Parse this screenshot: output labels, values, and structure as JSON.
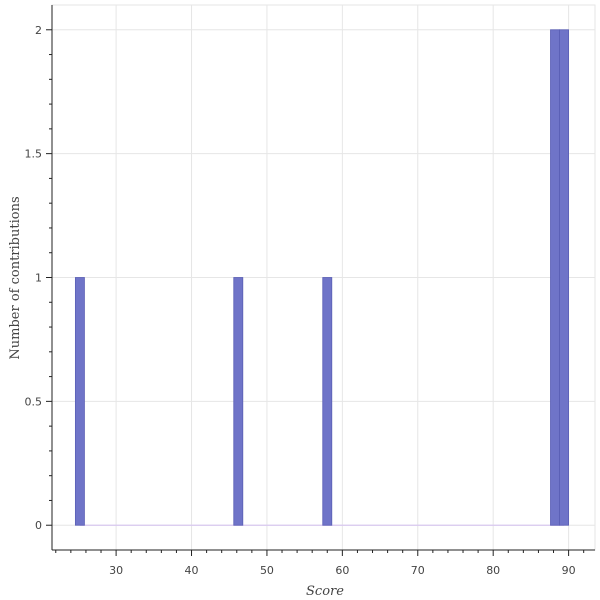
{
  "chart_data": {
    "type": "bar",
    "title": "",
    "xlabel": "Score",
    "ylabel": "Number of contributions",
    "xlim": [
      21.5,
      93.5
    ],
    "ylim": [
      -0.1,
      2.1
    ],
    "x_ticks": [
      30,
      40,
      50,
      60,
      70,
      80,
      90
    ],
    "x_tick_labels": [
      "30",
      "40",
      "50",
      "60",
      "70",
      "80",
      "90"
    ],
    "y_ticks": [
      0,
      0.5,
      1,
      1.5,
      2
    ],
    "y_tick_labels": [
      "0",
      "0.5",
      "1",
      "1.5",
      "2"
    ],
    "bin_width": 1.2,
    "bins": [
      {
        "x": 25.2,
        "value": 1
      },
      {
        "x": 46.2,
        "value": 1
      },
      {
        "x": 58.0,
        "value": 1
      },
      {
        "x": 88.2,
        "value": 2
      },
      {
        "x": 89.4,
        "value": 2
      }
    ],
    "baseline_range": [
      25.2,
      89.4
    ],
    "grid": true,
    "colors": {
      "bar_fill": "#6f74c8",
      "bar_stroke": "#5a5fb5",
      "baseline": "#d9c8f0",
      "grid": "#e6e6e6"
    }
  }
}
